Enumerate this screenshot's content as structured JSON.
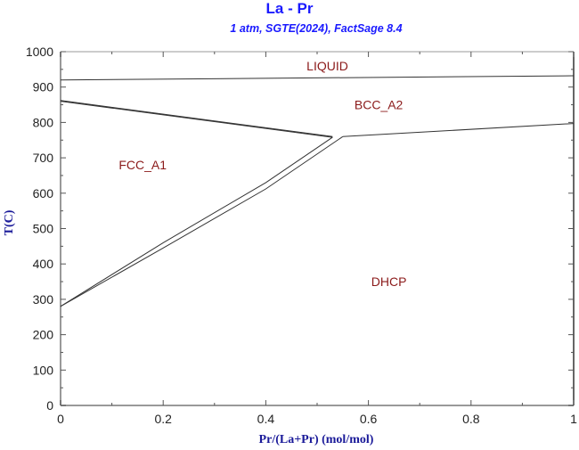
{
  "title": "La - Pr",
  "subtitle": "1 atm, SGTE(2024), FactSage 8.4",
  "xlabel": "Pr/(La+Pr) (mol/mol)",
  "ylabel": "T(C)",
  "colors": {
    "title": "#1a1aff",
    "axis_label": "#1a1a99",
    "region_label": "#8b1a1a",
    "lines": "#333333",
    "axes": "#999999"
  },
  "chart_data": {
    "type": "line",
    "title": "La - Pr",
    "subtitle": "1 atm, SGTE(2024), FactSage 8.4",
    "xlabel": "Pr/(La+Pr) (mol/mol)",
    "ylabel": "T(C)",
    "xlim": [
      0,
      1
    ],
    "ylim": [
      0,
      1000
    ],
    "x_ticks": [
      "0",
      "0.2",
      "0.4",
      "0.6",
      "0.8",
      "1"
    ],
    "y_ticks": [
      "0",
      "100",
      "200",
      "300",
      "400",
      "500",
      "600",
      "700",
      "800",
      "900",
      "1000"
    ],
    "grid": false,
    "legend": null,
    "region_labels": [
      {
        "label": "LIQUID",
        "x": 0.52,
        "y": 960
      },
      {
        "label": "BCC_A2",
        "x": 0.62,
        "y": 850
      },
      {
        "label": "FCC_A1",
        "x": 0.16,
        "y": 680
      },
      {
        "label": "DHCP",
        "x": 0.64,
        "y": 350
      }
    ],
    "series": [
      {
        "name": "Liquidus/Solidus",
        "x": [
          0,
          1
        ],
        "y": [
          920,
          932
        ]
      },
      {
        "name": "FCC/BCC boundary (upper)",
        "x": [
          0,
          0.53
        ],
        "y": [
          862,
          760
        ]
      },
      {
        "name": "FCC/BCC boundary (lower)",
        "x": [
          0,
          0.53
        ],
        "y": [
          860,
          758
        ]
      },
      {
        "name": "BCC/DHCP boundary",
        "x": [
          0.55,
          1
        ],
        "y": [
          760,
          797
        ]
      },
      {
        "name": "FCC/DHCP boundary (FCC side)",
        "x": [
          0,
          0.2,
          0.4,
          0.53
        ],
        "y": [
          280,
          460,
          630,
          758
        ]
      },
      {
        "name": "FCC/DHCP boundary (DHCP side)",
        "x": [
          0,
          0.2,
          0.4,
          0.55
        ],
        "y": [
          280,
          445,
          612,
          760
        ]
      }
    ]
  }
}
